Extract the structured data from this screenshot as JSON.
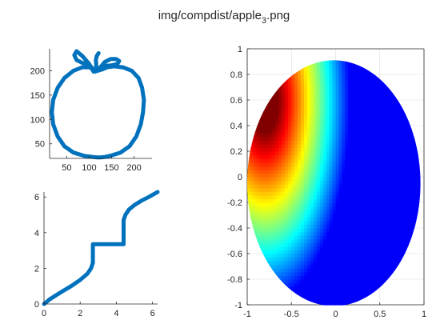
{
  "figure": {
    "title_main": "img/compdist/apple",
    "title_sub": "3",
    "title_ext": ".png"
  },
  "colors": {
    "curve": "#0072BD",
    "axis": "#262626",
    "grid": "#dcdcdc"
  },
  "chart_data": [
    {
      "id": "apple-contour",
      "type": "line",
      "title": "",
      "xlabel": "",
      "ylabel": "",
      "xlim": [
        12,
        240
      ],
      "ylim": [
        20,
        245
      ],
      "xticks": [
        50,
        100,
        150,
        200
      ],
      "xtick_labels": [
        "50",
        "100",
        "150",
        "200"
      ],
      "yticks": [
        50,
        100,
        150,
        200
      ],
      "ytick_labels": [
        "50",
        "100",
        "150",
        "200"
      ],
      "grid": false,
      "series": [
        {
          "x": [
            118,
            90,
            65,
            45,
            30,
            20,
            17,
            20,
            30,
            45,
            65,
            85,
            100,
            112,
            120,
            130,
            140,
            155,
            175,
            195,
            210,
            218,
            222,
            220,
            215,
            205,
            190,
            170,
            150,
            135,
            125,
            118
          ],
          "y": [
            22,
            25,
            32,
            45,
            65,
            90,
            115,
            140,
            165,
            185,
            200,
            207,
            207,
            203,
            200,
            203,
            207,
            209,
            207,
            200,
            185,
            165,
            140,
            115,
            90,
            65,
            45,
            32,
            26,
            23,
            22,
            22
          ]
        },
        {
          "x": [
            110,
            100,
            85,
            72,
            67,
            72,
            85,
            100,
            108,
            114
          ],
          "y": [
            198,
            214,
            230,
            240,
            232,
            222,
            216,
            212,
            205,
            198
          ],
          "name_free": true
        },
        {
          "x": [
            118,
            116,
            115,
            117,
            121
          ],
          "y": [
            200,
            210,
            222,
            230,
            236
          ]
        },
        {
          "x": [
            124,
            135,
            148,
            160,
            167,
            163,
            150,
            137,
            126
          ],
          "y": [
            206,
            218,
            224,
            224,
            220,
            214,
            211,
            210,
            206
          ]
        }
      ]
    },
    {
      "id": "cumulative-distance",
      "type": "line",
      "title": "",
      "xlabel": "",
      "ylabel": "",
      "xlim": [
        0,
        6.28
      ],
      "ylim": [
        0,
        6.28
      ],
      "xticks": [
        0,
        2,
        4,
        6
      ],
      "xtick_labels": [
        "0",
        "2",
        "4",
        "6"
      ],
      "yticks": [
        0,
        2,
        4,
        6
      ],
      "ytick_labels": [
        "0",
        "2",
        "4",
        "6"
      ],
      "grid": false,
      "series": [
        {
          "x": [
            0,
            0.1,
            0.3,
            0.6,
            1.0,
            1.5,
            2.0,
            2.4,
            2.6,
            2.7,
            2.7,
            3.3,
            4.4,
            4.4,
            4.5,
            4.7,
            5.0,
            5.4,
            5.8,
            6.28
          ],
          "y": [
            0,
            0.08,
            0.25,
            0.45,
            0.7,
            1.0,
            1.35,
            1.7,
            2.0,
            2.3,
            3.35,
            3.35,
            3.35,
            4.7,
            5.0,
            5.3,
            5.55,
            5.8,
            6.0,
            6.28
          ]
        }
      ]
    },
    {
      "id": "distance-field",
      "type": "heatmap",
      "title": "",
      "xlabel": "",
      "ylabel": "",
      "xlim": [
        -1,
        1
      ],
      "ylim": [
        -1,
        1
      ],
      "xticks": [
        -1,
        -0.5,
        0,
        0.5,
        1
      ],
      "xtick_labels": [
        "-1",
        "-0.5",
        "0",
        "0.5",
        "1"
      ],
      "yticks": [
        -1,
        -0.8,
        -0.6,
        -0.4,
        -0.2,
        0,
        0.2,
        0.4,
        0.6,
        0.8,
        1
      ],
      "ytick_labels": [
        "-1",
        "-0.8",
        "-0.6",
        "-0.4",
        "-0.2",
        "0",
        "0.2",
        "0.4",
        "0.6",
        "0.8",
        "1"
      ],
      "grid": true,
      "colormap": "jet",
      "domain_shape": "ellipse",
      "ellipse_center": [
        -0.02,
        -0.05
      ],
      "ellipse_radii": [
        0.98,
        0.96
      ],
      "hot_spot": [
        -0.8,
        0.6
      ],
      "cold_spot": [
        0.55,
        -0.4
      ]
    }
  ]
}
